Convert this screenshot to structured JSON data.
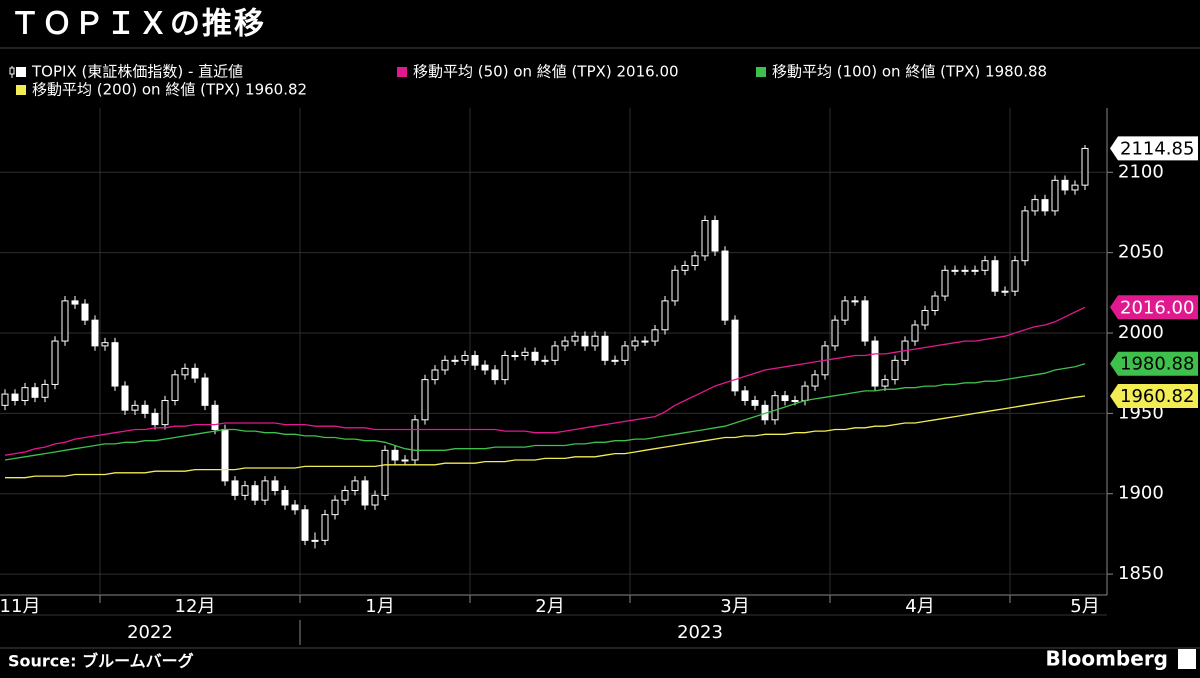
{
  "chart_data": {
    "type": "candlestick",
    "title": "ＴＯＰＩＸの推移",
    "source": "Source: ブルームバーグ",
    "brand": "Bloomberg",
    "ylim": [
      1837,
      2140
    ],
    "yticks": [
      1850,
      1900,
      1950,
      2000,
      2050,
      2100
    ],
    "xlim": [
      -0.5,
      110
    ],
    "xticks": [
      {
        "value": 1.5,
        "label": "11月"
      },
      {
        "value": 19,
        "label": "12月"
      },
      {
        "value": 37.5,
        "label": "1月"
      },
      {
        "value": 54.5,
        "label": "2月"
      },
      {
        "value": 73,
        "label": "3月"
      },
      {
        "value": 91.5,
        "label": "4月"
      },
      {
        "value": 108,
        "label": "5月"
      }
    ],
    "month_separators": [
      9.5,
      29.5,
      46.5,
      62.5,
      82.5,
      100.5
    ],
    "years": [
      {
        "value": 14.5,
        "label": "2022"
      },
      {
        "value": 69.5,
        "label": "2023"
      }
    ],
    "year_separators": [
      29.5
    ],
    "grid": true,
    "series": [
      {
        "name": "TOPIX (東証株価指数) - 直近値",
        "color": "#ffffff",
        "ohlc": [
          [
            1955,
            1965,
            1952,
            1962
          ],
          [
            1962,
            1965,
            1955,
            1958
          ],
          [
            1958,
            1969,
            1955,
            1966
          ],
          [
            1966,
            1969,
            1957,
            1960
          ],
          [
            1960,
            1971,
            1957,
            1968
          ],
          [
            1968,
            1998,
            1965,
            1995
          ],
          [
            1995,
            2023,
            1992,
            2020
          ],
          [
            2020,
            2023,
            2015,
            2018
          ],
          [
            2018,
            2021,
            2005,
            2008
          ],
          [
            2008,
            2011,
            1989,
            1992
          ],
          [
            1992,
            1997,
            1989,
            1994
          ],
          [
            1994,
            1997,
            1964,
            1967
          ],
          [
            1967,
            1970,
            1949,
            1952
          ],
          [
            1952,
            1958,
            1949,
            1955
          ],
          [
            1955,
            1958,
            1947,
            1950
          ],
          [
            1950,
            1953,
            1940,
            1943
          ],
          [
            1943,
            1961,
            1940,
            1958
          ],
          [
            1958,
            1977,
            1955,
            1974
          ],
          [
            1974,
            1981,
            1971,
            1978
          ],
          [
            1978,
            1981,
            1969,
            1972
          ],
          [
            1972,
            1975,
            1952,
            1955
          ],
          [
            1955,
            1958,
            1937,
            1940
          ],
          [
            1940,
            1943,
            1905,
            1908
          ],
          [
            1908,
            1911,
            1896,
            1899
          ],
          [
            1899,
            1908,
            1896,
            1905
          ],
          [
            1905,
            1908,
            1893,
            1896
          ],
          [
            1896,
            1911,
            1893,
            1908
          ],
          [
            1908,
            1911,
            1899,
            1902
          ],
          [
            1902,
            1905,
            1890,
            1893
          ],
          [
            1893,
            1896,
            1887,
            1890
          ],
          [
            1890,
            1893,
            1868,
            1871
          ],
          [
            1871,
            1876,
            1866,
            1871
          ],
          [
            1871,
            1890,
            1868,
            1887
          ],
          [
            1887,
            1899,
            1884,
            1896
          ],
          [
            1896,
            1905,
            1893,
            1902
          ],
          [
            1902,
            1911,
            1899,
            1908
          ],
          [
            1908,
            1911,
            1890,
            1893
          ],
          [
            1893,
            1902,
            1890,
            1899
          ],
          [
            1899,
            1930,
            1896,
            1927
          ],
          [
            1927,
            1930,
            1918,
            1921
          ],
          [
            1921,
            1924,
            1918,
            1921
          ],
          [
            1921,
            1949,
            1918,
            1946
          ],
          [
            1946,
            1974,
            1943,
            1971
          ],
          [
            1971,
            1980,
            1968,
            1977
          ],
          [
            1977,
            1986,
            1974,
            1983
          ],
          [
            1983,
            1986,
            1980,
            1983
          ],
          [
            1983,
            1989,
            1980,
            1986
          ],
          [
            1986,
            1989,
            1977,
            1980
          ],
          [
            1980,
            1983,
            1974,
            1977
          ],
          [
            1977,
            1980,
            1968,
            1971
          ],
          [
            1971,
            1989,
            1968,
            1986
          ],
          [
            1986,
            1989,
            1983,
            1986
          ],
          [
            1986,
            1991,
            1983,
            1988
          ],
          [
            1988,
            1991,
            1980,
            1983
          ],
          [
            1983,
            1986,
            1980,
            1983
          ],
          [
            1983,
            1995,
            1980,
            1992
          ],
          [
            1992,
            1998,
            1989,
            1995
          ],
          [
            1995,
            2001,
            1992,
            1998
          ],
          [
            1998,
            2001,
            1989,
            1992
          ],
          [
            1992,
            2001,
            1989,
            1998
          ],
          [
            1998,
            2001,
            1980,
            1983
          ],
          [
            1983,
            1986,
            1980,
            1983
          ],
          [
            1983,
            1995,
            1980,
            1992
          ],
          [
            1992,
            1998,
            1989,
            1995
          ],
          [
            1995,
            1998,
            1992,
            1995
          ],
          [
            1995,
            2005,
            1992,
            2002
          ],
          [
            2002,
            2023,
            1999,
            2020
          ],
          [
            2020,
            2042,
            2017,
            2039
          ],
          [
            2039,
            2045,
            2036,
            2042
          ],
          [
            2042,
            2051,
            2039,
            2048
          ],
          [
            2048,
            2073,
            2045,
            2070
          ],
          [
            2070,
            2073,
            2048,
            2051
          ],
          [
            2051,
            2054,
            2005,
            2008
          ],
          [
            2008,
            2011,
            1961,
            1964
          ],
          [
            1964,
            1967,
            1955,
            1958
          ],
          [
            1958,
            1961,
            1952,
            1955
          ],
          [
            1955,
            1958,
            1943,
            1946
          ],
          [
            1946,
            1964,
            1943,
            1961
          ],
          [
            1961,
            1964,
            1955,
            1958
          ],
          [
            1958,
            1961,
            1955,
            1958
          ],
          [
            1958,
            1970,
            1955,
            1967
          ],
          [
            1967,
            1977,
            1964,
            1974
          ],
          [
            1974,
            1995,
            1971,
            1992
          ],
          [
            1992,
            2011,
            1989,
            2008
          ],
          [
            2008,
            2023,
            2005,
            2020
          ],
          [
            2020,
            2023,
            2017,
            2020
          ],
          [
            2020,
            2023,
            1992,
            1995
          ],
          [
            1995,
            1998,
            1964,
            1967
          ],
          [
            1967,
            1974,
            1964,
            1971
          ],
          [
            1971,
            1986,
            1968,
            1983
          ],
          [
            1983,
            1998,
            1980,
            1995
          ],
          [
            1995,
            2008,
            1992,
            2005
          ],
          [
            2005,
            2017,
            2002,
            2014
          ],
          [
            2014,
            2026,
            2011,
            2023
          ],
          [
            2023,
            2042,
            2020,
            2039
          ],
          [
            2039,
            2042,
            2036,
            2039
          ],
          [
            2039,
            2042,
            2036,
            2039
          ],
          [
            2039,
            2042,
            2036,
            2039
          ],
          [
            2039,
            2048,
            2036,
            2045
          ],
          [
            2045,
            2048,
            2023,
            2026
          ],
          [
            2026,
            2029,
            2023,
            2026
          ],
          [
            2026,
            2048,
            2023,
            2045
          ],
          [
            2045,
            2079,
            2042,
            2076
          ],
          [
            2076,
            2086,
            2073,
            2083
          ],
          [
            2083,
            2086,
            2073,
            2076
          ],
          [
            2076,
            2098,
            2073,
            2095
          ],
          [
            2095,
            2098,
            2086,
            2089
          ],
          [
            2089,
            2095,
            2086,
            2092
          ],
          [
            2092,
            2117,
            2089,
            2114.85
          ]
        ]
      },
      {
        "name": "移動平均 (50) on 終値 (TPX) 2016.00",
        "color": "#e0198f",
        "last_label": "2016.00",
        "values": [
          1924,
          1925,
          1926,
          1928,
          1929,
          1931,
          1932,
          1934,
          1935,
          1936,
          1937,
          1938,
          1939,
          1940,
          1940,
          1941,
          1941,
          1942,
          1942,
          1943,
          1943,
          1943,
          1944,
          1944,
          1944,
          1944,
          1944,
          1944,
          1943,
          1943,
          1943,
          1942,
          1942,
          1942,
          1941,
          1941,
          1941,
          1940,
          1940,
          1940,
          1940,
          1940,
          1940,
          1940,
          1940,
          1940,
          1940,
          1940,
          1940,
          1940,
          1939,
          1939,
          1939,
          1938,
          1938,
          1938,
          1939,
          1940,
          1941,
          1942,
          1943,
          1944,
          1945,
          1946,
          1947,
          1948,
          1951,
          1955,
          1958,
          1961,
          1964,
          1967,
          1969,
          1971,
          1973,
          1975,
          1977,
          1978,
          1979,
          1980,
          1981,
          1982,
          1983,
          1984,
          1985,
          1986,
          1986,
          1987,
          1987,
          1988,
          1989,
          1990,
          1991,
          1992,
          1993,
          1994,
          1995,
          1995,
          1996,
          1997,
          1998,
          2000,
          2002,
          2004,
          2005,
          2007,
          2010,
          2013,
          2016.0
        ]
      },
      {
        "name": "移動平均 (100) on 終値 (TPX) 1980.88",
        "color": "#3fbf4c",
        "values": [
          1921,
          1922,
          1923,
          1924,
          1925,
          1926,
          1927,
          1928,
          1929,
          1930,
          1931,
          1931,
          1932,
          1932,
          1933,
          1933,
          1934,
          1935,
          1936,
          1937,
          1938,
          1939,
          1940,
          1940,
          1939,
          1939,
          1938,
          1938,
          1937,
          1937,
          1936,
          1936,
          1935,
          1935,
          1934,
          1934,
          1933,
          1933,
          1932,
          1930,
          1928,
          1927,
          1927,
          1927,
          1927,
          1928,
          1928,
          1928,
          1928,
          1929,
          1929,
          1929,
          1929,
          1930,
          1930,
          1930,
          1930,
          1931,
          1931,
          1932,
          1932,
          1933,
          1933,
          1934,
          1934,
          1935,
          1936,
          1937,
          1938,
          1939,
          1940,
          1941,
          1942,
          1944,
          1946,
          1948,
          1950,
          1952,
          1954,
          1956,
          1958,
          1959,
          1960,
          1961,
          1962,
          1963,
          1964,
          1964,
          1965,
          1965,
          1966,
          1966,
          1967,
          1967,
          1968,
          1968,
          1969,
          1969,
          1970,
          1970,
          1971,
          1972,
          1973,
          1974,
          1975,
          1977,
          1978,
          1979,
          1980.88
        ]
      },
      {
        "name": "移動平均 (200) on 終値 (TPX)  1960.82",
        "color": "#f2ec55",
        "values": [
          1910,
          1910,
          1910,
          1911,
          1911,
          1911,
          1911,
          1912,
          1912,
          1912,
          1912,
          1913,
          1913,
          1913,
          1913,
          1914,
          1914,
          1914,
          1914,
          1915,
          1915,
          1915,
          1915,
          1915,
          1916,
          1916,
          1916,
          1916,
          1916,
          1916,
          1917,
          1917,
          1917,
          1917,
          1917,
          1917,
          1917,
          1917,
          1918,
          1918,
          1918,
          1918,
          1918,
          1918,
          1919,
          1919,
          1919,
          1919,
          1920,
          1920,
          1920,
          1921,
          1921,
          1921,
          1922,
          1922,
          1922,
          1923,
          1923,
          1923,
          1924,
          1925,
          1925,
          1926,
          1927,
          1928,
          1929,
          1930,
          1931,
          1932,
          1933,
          1934,
          1935,
          1935,
          1936,
          1936,
          1937,
          1937,
          1937,
          1938,
          1938,
          1939,
          1939,
          1940,
          1940,
          1941,
          1941,
          1942,
          1942,
          1943,
          1944,
          1944,
          1945,
          1946,
          1947,
          1948,
          1949,
          1950,
          1951,
          1952,
          1953,
          1954,
          1955,
          1956,
          1957,
          1958,
          1959,
          1960,
          1960.82
        ]
      }
    ]
  }
}
